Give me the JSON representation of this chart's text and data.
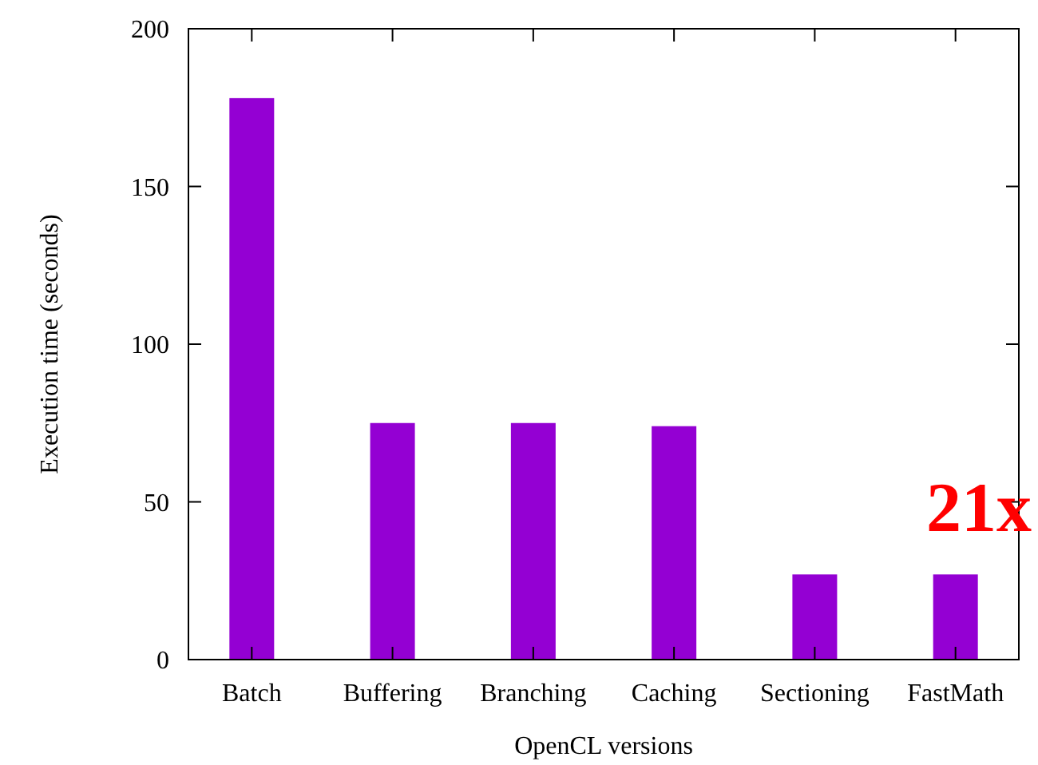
{
  "chart_data": {
    "type": "bar",
    "xlabel": "OpenCL versions",
    "ylabel": "Execution time (seconds)",
    "categories": [
      "Batch",
      "Buffering",
      "Branching",
      "Caching",
      "Sectioning",
      "FastMath"
    ],
    "series": [
      {
        "color": "#9400d3",
        "values": [
          178,
          75,
          75,
          74,
          27,
          27
        ]
      }
    ],
    "ylim": [
      0,
      200
    ],
    "yticks": [
      0,
      50,
      100,
      150,
      200
    ],
    "annotations": [
      "21x"
    ]
  }
}
